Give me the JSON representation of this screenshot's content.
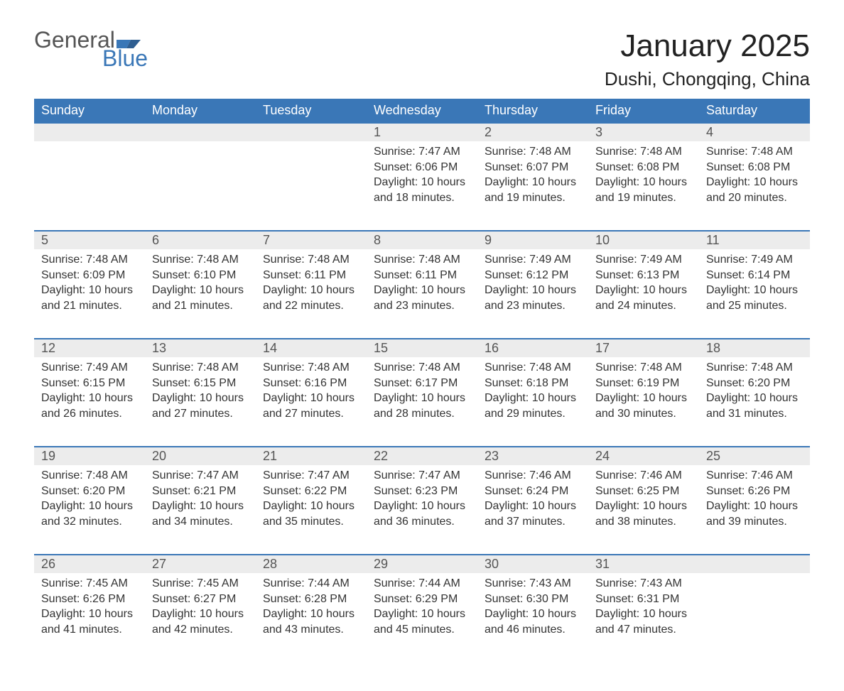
{
  "brand": {
    "word1": "General",
    "word2": "Blue",
    "accent_color": "#3a77b7"
  },
  "title": "January 2025",
  "location": "Dushi, Chongqing, China",
  "colors": {
    "header_bg": "#3a77b7",
    "header_text": "#ffffff",
    "daynum_bg": "#ececec",
    "row_divider": "#3a77b7",
    "body_text": "#333333"
  },
  "weekdays": [
    "Sunday",
    "Monday",
    "Tuesday",
    "Wednesday",
    "Thursday",
    "Friday",
    "Saturday"
  ],
  "weeks": [
    [
      null,
      null,
      null,
      {
        "n": "1",
        "sunrise": "7:47 AM",
        "sunset": "6:06 PM",
        "dl": "10 hours and 18 minutes."
      },
      {
        "n": "2",
        "sunrise": "7:48 AM",
        "sunset": "6:07 PM",
        "dl": "10 hours and 19 minutes."
      },
      {
        "n": "3",
        "sunrise": "7:48 AM",
        "sunset": "6:08 PM",
        "dl": "10 hours and 19 minutes."
      },
      {
        "n": "4",
        "sunrise": "7:48 AM",
        "sunset": "6:08 PM",
        "dl": "10 hours and 20 minutes."
      }
    ],
    [
      {
        "n": "5",
        "sunrise": "7:48 AM",
        "sunset": "6:09 PM",
        "dl": "10 hours and 21 minutes."
      },
      {
        "n": "6",
        "sunrise": "7:48 AM",
        "sunset": "6:10 PM",
        "dl": "10 hours and 21 minutes."
      },
      {
        "n": "7",
        "sunrise": "7:48 AM",
        "sunset": "6:11 PM",
        "dl": "10 hours and 22 minutes."
      },
      {
        "n": "8",
        "sunrise": "7:48 AM",
        "sunset": "6:11 PM",
        "dl": "10 hours and 23 minutes."
      },
      {
        "n": "9",
        "sunrise": "7:49 AM",
        "sunset": "6:12 PM",
        "dl": "10 hours and 23 minutes."
      },
      {
        "n": "10",
        "sunrise": "7:49 AM",
        "sunset": "6:13 PM",
        "dl": "10 hours and 24 minutes."
      },
      {
        "n": "11",
        "sunrise": "7:49 AM",
        "sunset": "6:14 PM",
        "dl": "10 hours and 25 minutes."
      }
    ],
    [
      {
        "n": "12",
        "sunrise": "7:49 AM",
        "sunset": "6:15 PM",
        "dl": "10 hours and 26 minutes."
      },
      {
        "n": "13",
        "sunrise": "7:48 AM",
        "sunset": "6:15 PM",
        "dl": "10 hours and 27 minutes."
      },
      {
        "n": "14",
        "sunrise": "7:48 AM",
        "sunset": "6:16 PM",
        "dl": "10 hours and 27 minutes."
      },
      {
        "n": "15",
        "sunrise": "7:48 AM",
        "sunset": "6:17 PM",
        "dl": "10 hours and 28 minutes."
      },
      {
        "n": "16",
        "sunrise": "7:48 AM",
        "sunset": "6:18 PM",
        "dl": "10 hours and 29 minutes."
      },
      {
        "n": "17",
        "sunrise": "7:48 AM",
        "sunset": "6:19 PM",
        "dl": "10 hours and 30 minutes."
      },
      {
        "n": "18",
        "sunrise": "7:48 AM",
        "sunset": "6:20 PM",
        "dl": "10 hours and 31 minutes."
      }
    ],
    [
      {
        "n": "19",
        "sunrise": "7:48 AM",
        "sunset": "6:20 PM",
        "dl": "10 hours and 32 minutes."
      },
      {
        "n": "20",
        "sunrise": "7:47 AM",
        "sunset": "6:21 PM",
        "dl": "10 hours and 34 minutes."
      },
      {
        "n": "21",
        "sunrise": "7:47 AM",
        "sunset": "6:22 PM",
        "dl": "10 hours and 35 minutes."
      },
      {
        "n": "22",
        "sunrise": "7:47 AM",
        "sunset": "6:23 PM",
        "dl": "10 hours and 36 minutes."
      },
      {
        "n": "23",
        "sunrise": "7:46 AM",
        "sunset": "6:24 PM",
        "dl": "10 hours and 37 minutes."
      },
      {
        "n": "24",
        "sunrise": "7:46 AM",
        "sunset": "6:25 PM",
        "dl": "10 hours and 38 minutes."
      },
      {
        "n": "25",
        "sunrise": "7:46 AM",
        "sunset": "6:26 PM",
        "dl": "10 hours and 39 minutes."
      }
    ],
    [
      {
        "n": "26",
        "sunrise": "7:45 AM",
        "sunset": "6:26 PM",
        "dl": "10 hours and 41 minutes."
      },
      {
        "n": "27",
        "sunrise": "7:45 AM",
        "sunset": "6:27 PM",
        "dl": "10 hours and 42 minutes."
      },
      {
        "n": "28",
        "sunrise": "7:44 AM",
        "sunset": "6:28 PM",
        "dl": "10 hours and 43 minutes."
      },
      {
        "n": "29",
        "sunrise": "7:44 AM",
        "sunset": "6:29 PM",
        "dl": "10 hours and 45 minutes."
      },
      {
        "n": "30",
        "sunrise": "7:43 AM",
        "sunset": "6:30 PM",
        "dl": "10 hours and 46 minutes."
      },
      {
        "n": "31",
        "sunrise": "7:43 AM",
        "sunset": "6:31 PM",
        "dl": "10 hours and 47 minutes."
      },
      null
    ]
  ],
  "labels": {
    "sunrise": "Sunrise: ",
    "sunset": "Sunset: ",
    "daylight": "Daylight: "
  }
}
